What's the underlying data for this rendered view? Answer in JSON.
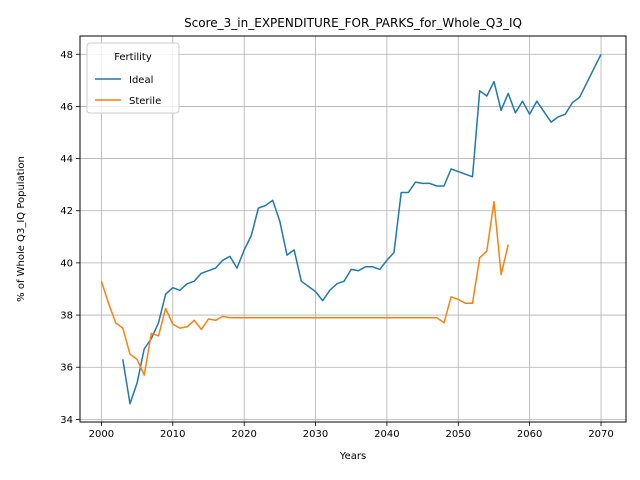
{
  "chart_data": {
    "type": "line",
    "title": "Score_3_in_EXPENDITURE_FOR_PARKS_for_Whole_Q3_IQ",
    "xlabel": "Years",
    "ylabel": "% of Whole Q3_IQ Population",
    "xlim": [
      1997,
      2073.5
    ],
    "ylim": [
      33.9,
      48.7
    ],
    "xticks": [
      2000,
      2010,
      2020,
      2030,
      2040,
      2050,
      2060,
      2070
    ],
    "yticks": [
      34,
      36,
      38,
      40,
      42,
      44,
      46,
      48
    ],
    "grid": true,
    "legend": {
      "title": "Fertility",
      "placement": "top-left"
    },
    "series": [
      {
        "name": "Ideal",
        "color": "#1f77b4",
        "x": [
          2003,
          2004,
          2005,
          2006,
          2007,
          2008,
          2009,
          2010,
          2011,
          2012,
          2013,
          2014,
          2015,
          2016,
          2017,
          2018,
          2019,
          2020,
          2021,
          2022,
          2023,
          2024,
          2025,
          2026,
          2027,
          2028,
          2029,
          2030,
          2031,
          2032,
          2033,
          2034,
          2035,
          2036,
          2037,
          2038,
          2039,
          2040,
          2041,
          2042,
          2043,
          2044,
          2045,
          2046,
          2047,
          2048,
          2049,
          2050,
          2051,
          2052,
          2053,
          2054,
          2055,
          2056,
          2057,
          2058,
          2059,
          2060,
          2061,
          2062,
          2063,
          2064,
          2065,
          2066,
          2067,
          2070
        ],
        "y": [
          36.3,
          34.6,
          35.4,
          36.7,
          37.1,
          37.7,
          38.8,
          39.05,
          38.95,
          39.2,
          39.3,
          39.6,
          39.7,
          39.8,
          40.1,
          40.25,
          39.8,
          40.5,
          41.05,
          42.1,
          42.2,
          42.4,
          41.6,
          40.3,
          40.5,
          39.3,
          39.1,
          38.9,
          38.55,
          38.95,
          39.2,
          39.3,
          39.75,
          39.7,
          39.85,
          39.85,
          39.75,
          40.1,
          40.4,
          42.7,
          42.7,
          43.1,
          43.05,
          43.05,
          42.95,
          42.95,
          43.6,
          43.5,
          43.4,
          43.3,
          46.6,
          46.4,
          46.95,
          45.85,
          46.5,
          45.75,
          46.2,
          45.7,
          46.2,
          45.8,
          45.4,
          45.6,
          45.7,
          46.15,
          46.35,
          48.0
        ]
      },
      {
        "name": "Sterile",
        "color": "#ff7f0e",
        "x": [
          2000,
          2001,
          2002,
          2003,
          2004,
          2005,
          2006,
          2007,
          2008,
          2009,
          2010,
          2011,
          2012,
          2013,
          2014,
          2015,
          2016,
          2017,
          2018,
          2019,
          2020,
          2021,
          2022,
          2023,
          2024,
          2025,
          2026,
          2027,
          2028,
          2029,
          2030,
          2031,
          2032,
          2033,
          2034,
          2035,
          2036,
          2037,
          2038,
          2039,
          2040,
          2041,
          2042,
          2043,
          2044,
          2045,
          2046,
          2047,
          2048,
          2049,
          2050,
          2051,
          2052,
          2053,
          2054,
          2055,
          2056,
          2057
        ],
        "y": [
          39.3,
          38.45,
          37.7,
          37.5,
          36.5,
          36.3,
          35.7,
          37.3,
          37.2,
          38.25,
          37.65,
          37.5,
          37.55,
          37.8,
          37.45,
          37.85,
          37.8,
          37.95,
          37.9,
          37.9,
          37.9,
          37.9,
          37.9,
          37.9,
          37.9,
          37.9,
          37.9,
          37.9,
          37.9,
          37.9,
          37.9,
          37.9,
          37.9,
          37.9,
          37.9,
          37.9,
          37.9,
          37.9,
          37.9,
          37.9,
          37.9,
          37.9,
          37.9,
          37.9,
          37.9,
          37.9,
          37.9,
          37.9,
          37.7,
          38.7,
          38.6,
          38.45,
          38.45,
          40.2,
          40.45,
          42.35,
          39.55,
          40.7
        ]
      }
    ]
  }
}
